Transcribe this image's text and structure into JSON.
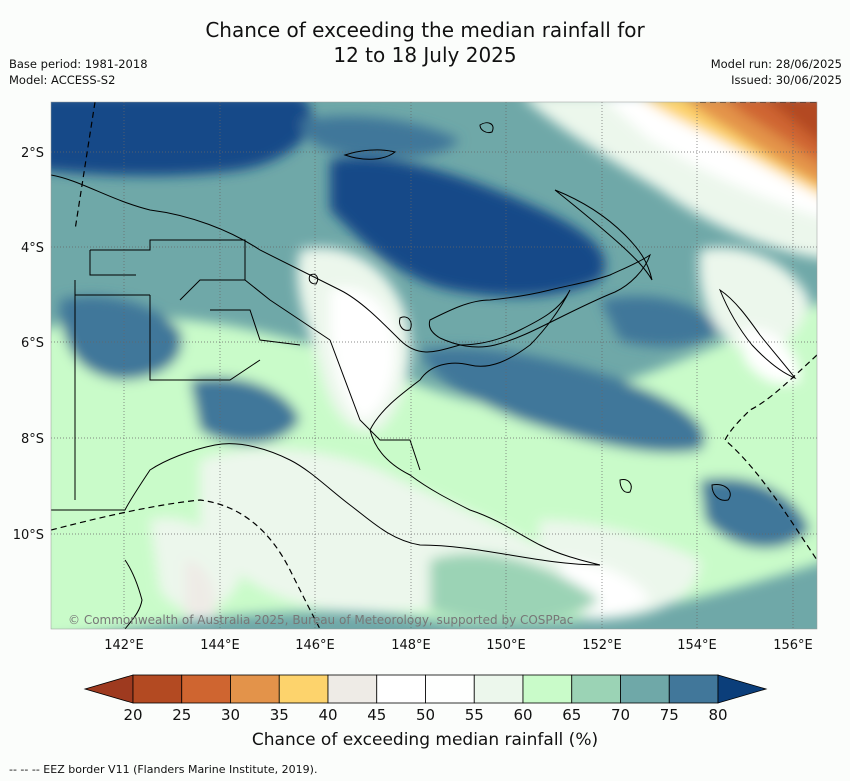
{
  "title_line1": "Chance of exceeding the median rainfall for",
  "title_line2": "12 to 18 July 2025",
  "base_period": "Base period: 1981-2018",
  "model": "Model: ACCESS-S2",
  "model_run": "Model run: 28/06/2025",
  "issued": "Issued: 30/06/2025",
  "copyright": "© Commonwealth of Australia 2025, Bureau of Meteorology, supported by COSPPac",
  "lat_labels": [
    "2°S",
    "4°S",
    "6°S",
    "8°S",
    "10°S"
  ],
  "lon_labels": [
    "142°E",
    "144°E",
    "146°E",
    "148°E",
    "150°E",
    "152°E",
    "154°E",
    "156°E"
  ],
  "colorbar": {
    "ticks": [
      "20",
      "25",
      "30",
      "35",
      "40",
      "45",
      "50",
      "55",
      "60",
      "65",
      "70",
      "75",
      "80"
    ],
    "colors": [
      "#b34a22",
      "#cf6530",
      "#e3934a",
      "#fdd36c",
      "#eeebe6",
      "#ffffff",
      "#fefffe",
      "#ecf7ec",
      "#c9fbc9",
      "#9bd3b5",
      "#6fa8a8",
      "#41779a",
      "#124a88"
    ],
    "under_color": "#9e3a1f",
    "over_color": "#0b3e7a",
    "label": "Chance of exceeding median rainfall (%)"
  },
  "footer": "--  --  -- EEZ border V11 (Flanders Marine Institute, 2019)."
}
